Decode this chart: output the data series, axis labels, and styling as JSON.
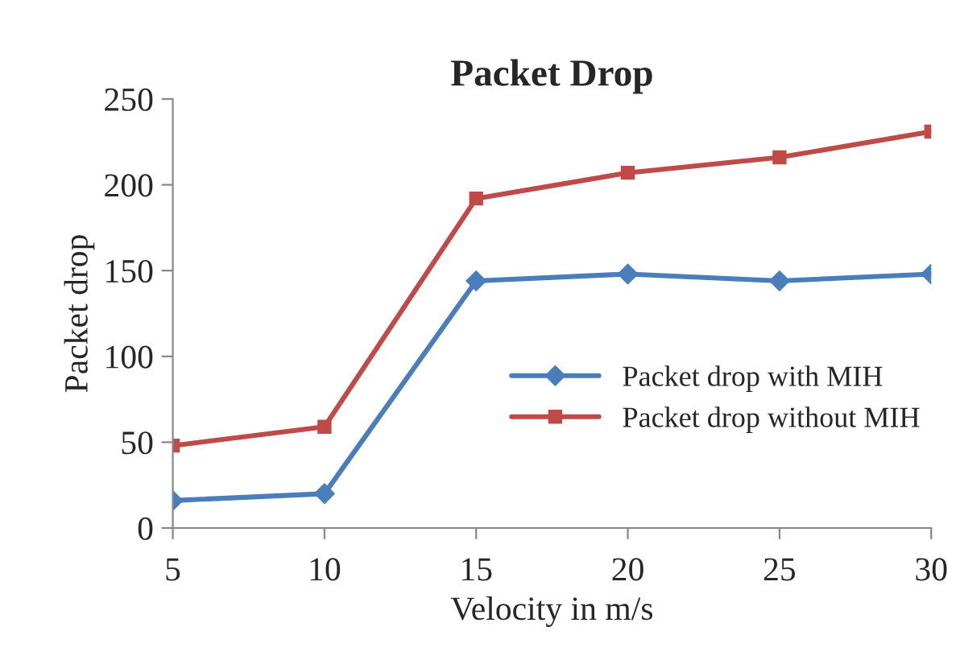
{
  "chart_data": {
    "type": "line",
    "title": "Packet Drop",
    "xlabel": "Velocity in m/s",
    "ylabel": "Packet drop",
    "x": [
      5,
      10,
      15,
      20,
      25,
      30
    ],
    "series": [
      {
        "name": "Packet drop with MIH",
        "color": "#4a7ebb",
        "marker": "diamond",
        "values": [
          16,
          20,
          144,
          148,
          144,
          148
        ]
      },
      {
        "name": "Packet drop without MIH",
        "color": "#be4b48",
        "marker": "square",
        "values": [
          48,
          59,
          192,
          207,
          216,
          231
        ]
      }
    ],
    "xlim": [
      5,
      30
    ],
    "xticks": [
      5,
      10,
      15,
      20,
      25,
      30
    ],
    "ylim": [
      0,
      250
    ],
    "yticks": [
      0,
      50,
      100,
      150,
      200,
      250
    ],
    "grid": false,
    "legend": "right",
    "line_style": "solid"
  }
}
